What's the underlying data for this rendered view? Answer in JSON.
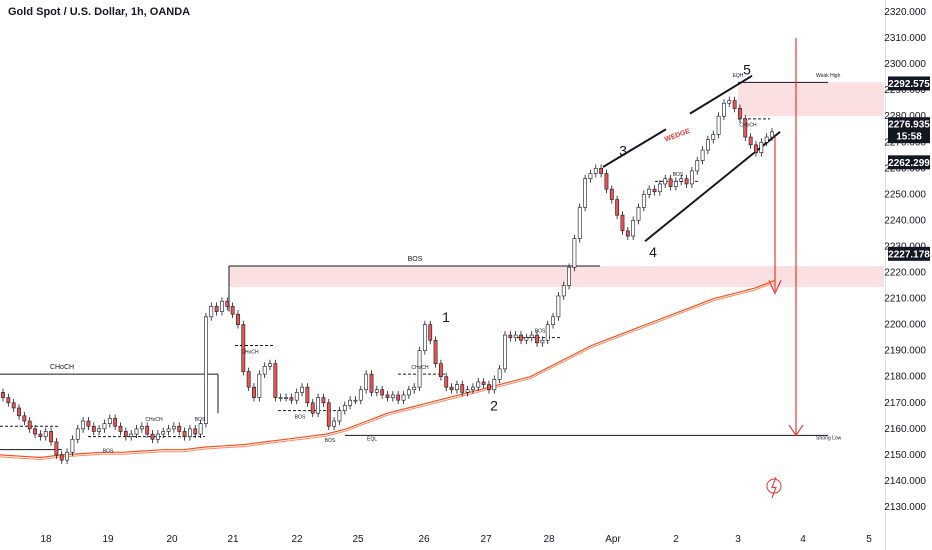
{
  "chart_data": {
    "type": "candlestick",
    "title": "Gold Spot / U.S. Dollar, 1h, OANDA",
    "price_labels": [
      "2320.000",
      "2310.000",
      "2300.000",
      "2290.000",
      "2280.000",
      "2270.000",
      "2260.000",
      "2250.000",
      "2240.000",
      "2230.000",
      "2220.000",
      "2210.000",
      "2200.000",
      "2190.000",
      "2180.000",
      "2170.000",
      "2160.000",
      "2150.000",
      "2140.000",
      "2130.000"
    ],
    "price_values": [
      2320,
      2310,
      2300,
      2290,
      2280,
      2270,
      2260,
      2250,
      2240,
      2230,
      2220,
      2210,
      2200,
      2190,
      2180,
      2170,
      2160,
      2150,
      2140,
      2130
    ],
    "x_labels": [
      "18",
      "19",
      "20",
      "21",
      "22",
      "25",
      "26",
      "27",
      "28",
      "Apr",
      "2",
      "3",
      "4",
      "5"
    ],
    "badges": {
      "weak_high": "2292.575",
      "current_price": "2276.935",
      "countdown": "15:58",
      "level_2262": "2262.299",
      "level_2227": "2227.178"
    },
    "candles_close": [
      2172,
      2170,
      2168,
      2165,
      2163,
      2160,
      2158,
      2157,
      2159,
      2155,
      2150,
      2148,
      2151,
      2156,
      2160,
      2163,
      2161,
      2159,
      2160,
      2162,
      2164,
      2161,
      2159,
      2157,
      2158,
      2160,
      2161,
      2158,
      2156,
      2158,
      2159,
      2160,
      2161,
      2159,
      2157,
      2160,
      2158,
      2162,
      2203,
      2207,
      2205,
      2209,
      2207,
      2204,
      2200,
      2182,
      2176,
      2172,
      2181,
      2184,
      2185,
      2172,
      2172,
      2172,
      2171,
      2174,
      2176,
      2170,
      2166,
      2172,
      2170,
      2161,
      2163,
      2167,
      2169,
      2171,
      2171,
      2175,
      2181,
      2174,
      2175,
      2173,
      2172,
      2173,
      2171,
      2173,
      2175,
      2176,
      2190,
      2200,
      2194,
      2185,
      2180,
      2176,
      2175,
      2177,
      2174,
      2175,
      2176,
      2178,
      2177,
      2175,
      2179,
      2183,
      2196,
      2195,
      2196,
      2194,
      2195,
      2196,
      2193,
      2194,
      2200,
      2203,
      2211,
      2215,
      2222,
      2233,
      2245,
      2256,
      2258,
      2260,
      2258,
      2252,
      2248,
      2242,
      2236,
      2234,
      2240,
      2245,
      2250,
      2252,
      2251,
      2254,
      2256,
      2253,
      2255,
      2256,
      2254,
      2259,
      2263,
      2267,
      2271,
      2273,
      2280,
      2285,
      2286,
      2283,
      2279,
      2272,
      2269,
      2266,
      2270,
      2272,
      2274
    ],
    "ema_values": [
      2150,
      2149.5,
      2149,
      2150,
      2150.5,
      2151,
      2151,
      2151.5,
      2152,
      2152,
      2153,
      2153.5,
      2154,
      2155,
      2156,
      2157,
      2158,
      2160,
      2163,
      2166,
      2168,
      2170,
      2172,
      2174,
      2176,
      2178,
      2180,
      2184,
      2188,
      2192,
      2195,
      2198,
      2201,
      2204,
      2207,
      2210,
      2212,
      2214,
      2217
    ],
    "annotations": {
      "bos_top": "BOS",
      "choch_left": "CHoCH",
      "choch_small": "CHoCH",
      "bos_small": "BOS",
      "eql": "EQL",
      "eqh": "EQH",
      "strong_low": "Strong Low",
      "weak_high": "Weak High",
      "wedge": "WEDGE",
      "wave_1": "1",
      "wave_2": "2",
      "wave_3": "3",
      "wave_4": "4",
      "wave_5": "5"
    },
    "colors": {
      "up": "#ffffff",
      "down": "#ef5350",
      "candle_border": "#131722",
      "ema": "#f4511e",
      "zone": "#fbe0e2",
      "arrow": "#e53935",
      "badge": "#131722"
    }
  }
}
